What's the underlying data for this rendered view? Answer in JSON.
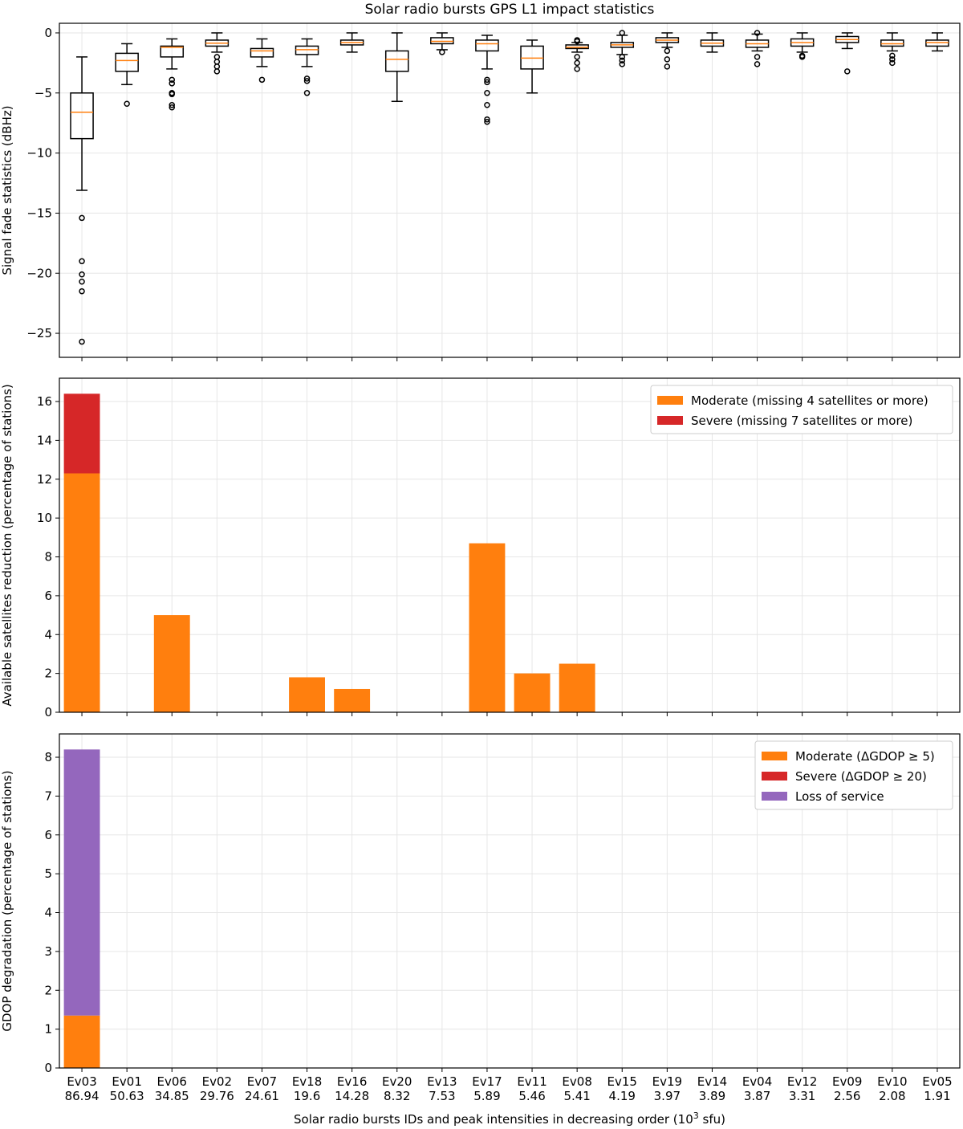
{
  "title": "Solar radio bursts GPS L1 impact statistics",
  "xlabel_prefix": "Solar radio bursts IDs and peak intensities in decreasing order (10",
  "xlabel_sup": "3",
  "xlabel_suffix": " sfu)",
  "colors": {
    "moderate": "#ff7f0e",
    "severe": "#d62728",
    "loss": "#9467bd",
    "median": "#ff7f0e"
  },
  "chart_data": [
    {
      "type": "box",
      "title": "Solar radio bursts GPS L1 impact statistics",
      "ylabel": "Signal fade statistics (dBHz)",
      "ylim": [
        -27,
        0.8
      ],
      "yticks": [
        0,
        -5,
        -10,
        -15,
        -20,
        -25
      ],
      "categories": [
        "Ev03",
        "Ev01",
        "Ev06",
        "Ev02",
        "Ev07",
        "Ev18",
        "Ev16",
        "Ev20",
        "Ev13",
        "Ev17",
        "Ev11",
        "Ev08",
        "Ev15",
        "Ev19",
        "Ev14",
        "Ev04",
        "Ev12",
        "Ev09",
        "Ev10",
        "Ev05"
      ],
      "peak_intensities": [
        "86.94",
        "50.63",
        "34.85",
        "29.76",
        "24.61",
        "19.6",
        "14.28",
        "8.32",
        "7.53",
        "5.89",
        "5.46",
        "5.41",
        "4.19",
        "3.97",
        "3.89",
        "3.87",
        "3.31",
        "2.56",
        "2.08",
        "1.91"
      ],
      "boxes": [
        {
          "wlo": -13.1,
          "q1": -8.8,
          "med": -6.6,
          "q3": -5.0,
          "whi": -2.0,
          "fliers": [
            -15.4,
            -19.0,
            -20.1,
            -20.7,
            -21.5,
            -25.7
          ]
        },
        {
          "wlo": -4.3,
          "q1": -3.2,
          "med": -2.3,
          "q3": -1.7,
          "whi": -0.9,
          "fliers": [
            -5.9
          ]
        },
        {
          "wlo": -3.0,
          "q1": -2.0,
          "med": -1.2,
          "q3": -1.1,
          "whi": -0.5,
          "fliers": [
            -3.9,
            -4.2,
            -5.0,
            -5.1,
            -6.0,
            -6.2
          ]
        },
        {
          "wlo": -1.6,
          "q1": -1.1,
          "med": -0.85,
          "q3": -0.6,
          "whi": 0.0,
          "fliers": [
            -2.0,
            -2.4,
            -2.8,
            -3.2
          ]
        },
        {
          "wlo": -2.8,
          "q1": -2.0,
          "med": -1.5,
          "q3": -1.3,
          "whi": -0.5,
          "fliers": [
            -3.9
          ]
        },
        {
          "wlo": -2.8,
          "q1": -1.8,
          "med": -1.4,
          "q3": -1.1,
          "whi": -0.5,
          "fliers": [
            -3.8,
            -4.0,
            -5.0
          ]
        },
        {
          "wlo": -1.6,
          "q1": -1.0,
          "med": -0.8,
          "q3": -0.6,
          "whi": 0.0,
          "fliers": []
        },
        {
          "wlo": -5.7,
          "q1": -3.2,
          "med": -2.2,
          "q3": -1.5,
          "whi": 0.0,
          "fliers": []
        },
        {
          "wlo": -1.4,
          "q1": -0.9,
          "med": -0.7,
          "q3": -0.4,
          "whi": 0.0,
          "fliers": [
            -1.6
          ]
        },
        {
          "wlo": -3.0,
          "q1": -1.5,
          "med": -0.9,
          "q3": -0.6,
          "whi": -0.2,
          "fliers": [
            -3.9,
            -4.1,
            -5.0,
            -6.0,
            -7.2,
            -7.4
          ]
        },
        {
          "wlo": -5.0,
          "q1": -3.0,
          "med": -2.1,
          "q3": -1.1,
          "whi": -0.6,
          "fliers": []
        },
        {
          "wlo": -1.6,
          "q1": -1.3,
          "med": -1.2,
          "q3": -1.0,
          "whi": -0.8,
          "fliers": [
            -0.6,
            -0.7,
            -2.0,
            -2.5,
            -3.0
          ]
        },
        {
          "wlo": -1.8,
          "q1": -1.2,
          "med": -1.0,
          "q3": -0.8,
          "whi": -0.2,
          "fliers": [
            0.0,
            -2.0,
            -2.3,
            -2.6
          ]
        },
        {
          "wlo": -1.2,
          "q1": -0.8,
          "med": -0.6,
          "q3": -0.4,
          "whi": 0.0,
          "fliers": [
            -1.5,
            -2.2,
            -2.8
          ]
        },
        {
          "wlo": -1.6,
          "q1": -1.1,
          "med": -0.85,
          "q3": -0.6,
          "whi": 0.0,
          "fliers": []
        },
        {
          "wlo": -1.5,
          "q1": -1.2,
          "med": -0.9,
          "q3": -0.6,
          "whi": -0.1,
          "fliers": [
            0.0,
            -2.0,
            -2.6
          ]
        },
        {
          "wlo": -1.6,
          "q1": -1.1,
          "med": -0.8,
          "q3": -0.5,
          "whi": 0.0,
          "fliers": [
            -1.9,
            -2.0
          ]
        },
        {
          "wlo": -1.3,
          "q1": -0.8,
          "med": -0.55,
          "q3": -0.3,
          "whi": 0.0,
          "fliers": [
            -3.2
          ]
        },
        {
          "wlo": -1.5,
          "q1": -1.1,
          "med": -0.9,
          "q3": -0.6,
          "whi": 0.0,
          "fliers": [
            -1.9,
            -2.2,
            -2.5
          ]
        },
        {
          "wlo": -1.5,
          "q1": -1.1,
          "med": -0.8,
          "q3": -0.6,
          "whi": 0.0,
          "fliers": []
        }
      ]
    },
    {
      "type": "bar",
      "stacked": true,
      "ylabel": "Available satellites reduction (percentage of stations)",
      "ylim": [
        0,
        17.2
      ],
      "yticks": [
        0,
        2,
        4,
        6,
        8,
        10,
        12,
        14,
        16
      ],
      "categories": [
        "Ev03",
        "Ev01",
        "Ev06",
        "Ev02",
        "Ev07",
        "Ev18",
        "Ev16",
        "Ev20",
        "Ev13",
        "Ev17",
        "Ev11",
        "Ev08",
        "Ev15",
        "Ev19",
        "Ev14",
        "Ev04",
        "Ev12",
        "Ev09",
        "Ev10",
        "Ev05"
      ],
      "legend_position": "top-right",
      "series": [
        {
          "name": "Moderate (missing 4 satellites or more)",
          "color": "#ff7f0e",
          "values": [
            12.3,
            0,
            5.0,
            0,
            0,
            1.8,
            1.2,
            0,
            0,
            8.7,
            2.0,
            2.5,
            0,
            0,
            0,
            0,
            0,
            0,
            0,
            0
          ]
        },
        {
          "name": "Severe (missing 7 satellites or more)",
          "color": "#d62728",
          "values": [
            4.1,
            0,
            0,
            0,
            0,
            0,
            0,
            0,
            0,
            0,
            0,
            0,
            0,
            0,
            0,
            0,
            0,
            0,
            0,
            0
          ]
        }
      ]
    },
    {
      "type": "bar",
      "stacked": true,
      "ylabel": "GDOP degradation (percentage of stations)",
      "ylim": [
        0,
        8.6
      ],
      "yticks": [
        0,
        1,
        2,
        3,
        4,
        5,
        6,
        7,
        8
      ],
      "categories": [
        "Ev03",
        "Ev01",
        "Ev06",
        "Ev02",
        "Ev07",
        "Ev18",
        "Ev16",
        "Ev20",
        "Ev13",
        "Ev17",
        "Ev11",
        "Ev08",
        "Ev15",
        "Ev19",
        "Ev14",
        "Ev04",
        "Ev12",
        "Ev09",
        "Ev10",
        "Ev05"
      ],
      "legend_position": "top-right",
      "series": [
        {
          "name": "Moderate",
          "label_math": "ΔGDOP ≥ 5",
          "color": "#ff7f0e",
          "values": [
            1.35,
            0,
            0,
            0,
            0,
            0,
            0,
            0,
            0,
            0,
            0,
            0,
            0,
            0,
            0,
            0,
            0,
            0,
            0,
            0
          ]
        },
        {
          "name": "Severe",
          "label_math": "ΔGDOP ≥ 20",
          "color": "#d62728",
          "values": [
            0,
            0,
            0,
            0,
            0,
            0,
            0,
            0,
            0,
            0,
            0,
            0,
            0,
            0,
            0,
            0,
            0,
            0,
            0,
            0
          ]
        },
        {
          "name": "Loss of service",
          "label_math": "",
          "color": "#9467bd",
          "values": [
            6.85,
            0,
            0,
            0,
            0,
            0,
            0,
            0,
            0,
            0,
            0,
            0,
            0,
            0,
            0,
            0,
            0,
            0,
            0,
            0
          ]
        }
      ]
    }
  ]
}
